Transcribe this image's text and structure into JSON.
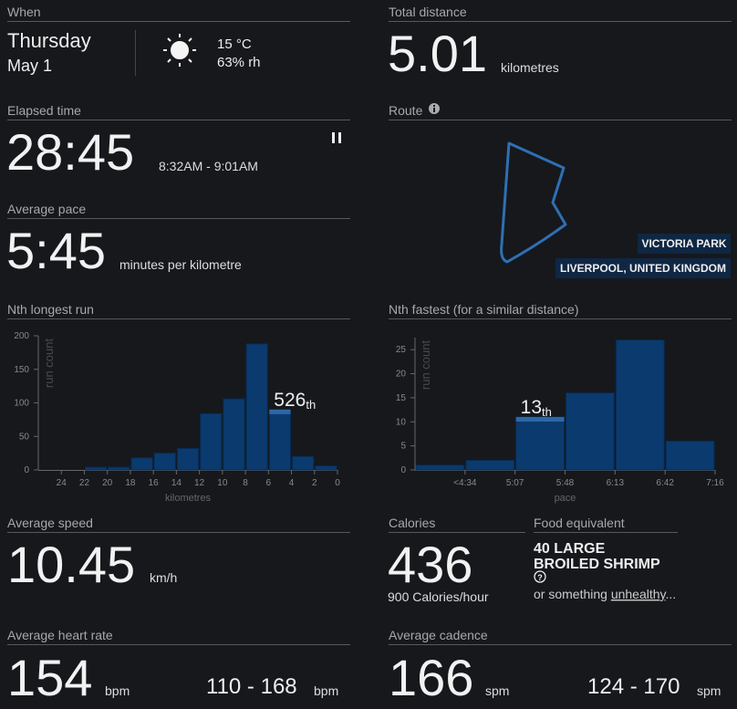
{
  "when": {
    "label": "When",
    "day": "Thursday",
    "date": "May 1",
    "temperature": "15 °C",
    "humidity": "63% rh"
  },
  "elapsed_time": {
    "label": "Elapsed time",
    "value": "28:45",
    "range": "8:32AM - 9:01AM"
  },
  "average_pace": {
    "label": "Average pace",
    "value": "5:45",
    "unit": "minutes per kilometre"
  },
  "total_distance": {
    "label": "Total distance",
    "value": 5.01,
    "unit": "kilometres"
  },
  "route": {
    "label": "Route",
    "park": "VICTORIA PARK",
    "city": "LIVERPOOL, UNITED KINGDOM"
  },
  "chart_data": [
    {
      "type": "histogram",
      "title": "Nth longest run",
      "bins": [
        24,
        22,
        20,
        18,
        16,
        14,
        12,
        10,
        8,
        6,
        4,
        2,
        0
      ],
      "counts": [
        0,
        4,
        4,
        18,
        25,
        32,
        84,
        106,
        188,
        90,
        20,
        6
      ],
      "xlim": [
        26,
        0
      ],
      "xticks": [
        24,
        22,
        20,
        18,
        16,
        14,
        12,
        10,
        8,
        6,
        4,
        2,
        0
      ],
      "ylim": [
        0,
        200
      ],
      "yticks": [
        0,
        50,
        100,
        150,
        200
      ],
      "xlabel": "kilometres",
      "ylabel": "run count",
      "highlight": 9,
      "annotation": {
        "rank": "526",
        "suffix": "th"
      },
      "color": "#0b3a6e",
      "highlight_color": "#2d67a6"
    },
    {
      "type": "histogram",
      "title": "Nth fastest (for a similar distance)",
      "bins": [
        null,
        "<4:34",
        "5:07",
        "5:48",
        "6:13",
        "6:42",
        "7:16"
      ],
      "counts": [
        1,
        2,
        11,
        16,
        27,
        6
      ],
      "ylim": [
        0,
        27.5
      ],
      "yticks": [
        0,
        5,
        10,
        15,
        20,
        25
      ],
      "xlabel": "pace",
      "ylabel": "run count",
      "highlight": 2,
      "annotation": {
        "rank": "13",
        "suffix": "th"
      },
      "color": "#0b3a6e",
      "highlight_color": "#2d67a6"
    }
  ],
  "average_speed": {
    "label": "Average speed",
    "value": 10.45,
    "unit": "km/h"
  },
  "calories": {
    "label": "Calories",
    "value": 436,
    "rate": 900,
    "rate_unit": "Calories/hour"
  },
  "food": {
    "label": "Food equivalent",
    "line1": "40 LARGE",
    "line2": "BROILED SHRIMP",
    "help": "?",
    "more_prefix": "or something ",
    "more_link": "unhealthy",
    "more_suffix": "..."
  },
  "heart_rate": {
    "label": "Average heart rate",
    "value": 154,
    "unit": "bpm",
    "range": "110 - 168",
    "range_unit": "bpm"
  },
  "cadence": {
    "label": "Average cadence",
    "value": 166,
    "unit": "spm",
    "range": "124 - 170",
    "range_unit": "spm"
  }
}
